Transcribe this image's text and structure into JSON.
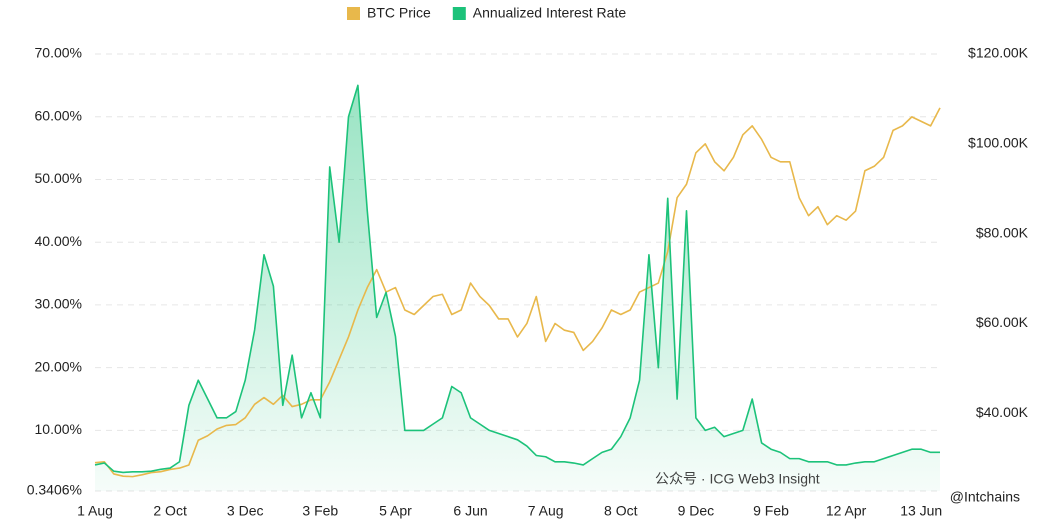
{
  "chart_data": {
    "type": "line",
    "categories": [
      "1 Aug",
      null,
      null,
      null,
      null,
      null,
      null,
      null,
      "2 Oct",
      null,
      null,
      null,
      null,
      null,
      null,
      null,
      "3 Dec",
      null,
      null,
      null,
      null,
      null,
      null,
      null,
      "3 Feb",
      null,
      null,
      null,
      null,
      null,
      null,
      null,
      "5 Apr",
      null,
      null,
      null,
      null,
      null,
      null,
      null,
      "6 Jun",
      null,
      null,
      null,
      null,
      null,
      null,
      null,
      "7 Aug",
      null,
      null,
      null,
      null,
      null,
      null,
      null,
      "8 Oct",
      null,
      null,
      null,
      null,
      null,
      null,
      null,
      "9 Dec",
      null,
      null,
      null,
      null,
      null,
      null,
      null,
      "9 Feb",
      null,
      null,
      null,
      null,
      null,
      null,
      null,
      "12 Apr",
      null,
      null,
      null,
      null,
      null,
      null,
      null,
      "13 Jun",
      null,
      null
    ],
    "series": [
      {
        "name": "BTC Price",
        "color": "#e8b84b",
        "axis": "y2",
        "values": [
          29000,
          29200,
          26500,
          26000,
          25900,
          26300,
          26800,
          27000,
          27500,
          27800,
          28500,
          34000,
          35000,
          36500,
          37300,
          37500,
          39000,
          42000,
          43500,
          42000,
          44000,
          41500,
          42000,
          43000,
          43000,
          47000,
          52000,
          57000,
          63000,
          68000,
          72000,
          67000,
          68000,
          63000,
          62000,
          64000,
          66000,
          66500,
          62000,
          63000,
          69000,
          66000,
          64000,
          61000,
          61000,
          57000,
          60000,
          66000,
          56000,
          60000,
          58500,
          58000,
          54000,
          56000,
          59000,
          63000,
          62000,
          63000,
          67000,
          68000,
          69000,
          76000,
          88000,
          91000,
          98000,
          100000,
          96000,
          94000,
          97000,
          102000,
          104000,
          101000,
          97000,
          96000,
          96000,
          88000,
          84000,
          86000,
          82000,
          84000,
          83000,
          85000,
          94000,
          95000,
          97000,
          103000,
          104000,
          106000,
          105000,
          104000,
          108000
        ]
      },
      {
        "name": "Annualized Interest Rate",
        "color": "#1cc27a",
        "values": [
          4.5,
          4.8,
          3.5,
          3.3,
          3.4,
          3.4,
          3.5,
          3.8,
          4.0,
          5.0,
          14,
          18,
          15,
          12,
          12,
          13,
          18,
          26,
          38,
          33,
          14,
          22,
          12,
          16,
          12,
          52,
          40,
          60,
          65,
          45,
          28,
          32,
          25,
          10,
          10,
          10,
          11,
          12,
          17,
          16,
          12,
          11,
          10,
          9.5,
          9,
          8.5,
          7.5,
          6,
          5.8,
          5,
          5,
          4.8,
          4.5,
          5.5,
          6.5,
          7,
          9,
          12,
          18,
          38,
          20,
          47,
          15,
          45,
          12,
          10,
          10.5,
          9,
          9.5,
          10,
          15,
          8,
          7,
          6.5,
          5.5,
          5.5,
          5,
          5,
          5,
          4.5,
          4.5,
          4.8,
          5,
          5,
          5.5,
          6,
          6.5,
          7,
          7,
          6.5,
          6.5
        ]
      }
    ],
    "ylim": [
      0.3406,
      70
    ],
    "yticks": [
      {
        "value": 0.3406,
        "label": "0.3406%"
      },
      {
        "value": 10,
        "label": "10.00%"
      },
      {
        "value": 20,
        "label": "20.00%"
      },
      {
        "value": 30,
        "label": "30.00%"
      },
      {
        "value": 40,
        "label": "40.00%"
      },
      {
        "value": 50,
        "label": "50.00%"
      },
      {
        "value": 60,
        "label": "60.00%"
      },
      {
        "value": 70,
        "label": "70.00%"
      }
    ],
    "y2lim": [
      22700,
      120000
    ],
    "y2ticks": [
      {
        "value": 40000,
        "label": "$40.00K"
      },
      {
        "value": 60000,
        "label": "$60.00K"
      },
      {
        "value": 80000,
        "label": "$80.00K"
      },
      {
        "value": 100000,
        "label": "$100.00K"
      },
      {
        "value": 120000,
        "label": "$120.00K"
      }
    ],
    "grid": true,
    "legend": "top",
    "annotations": [
      "公众号 · ICG Web3 Insight",
      "@Intchains"
    ]
  }
}
